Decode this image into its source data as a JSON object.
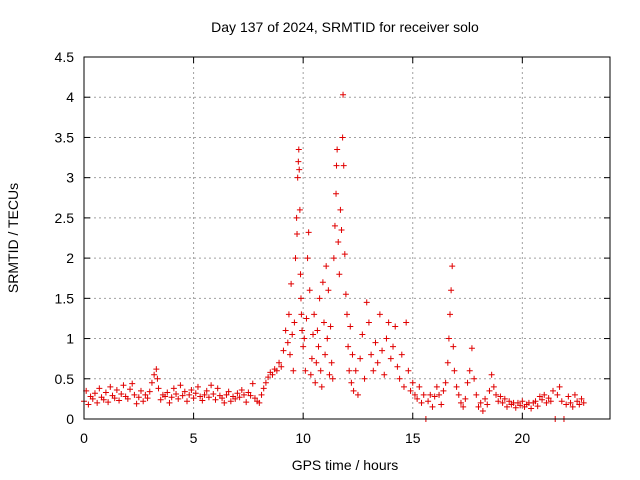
{
  "chart_data": {
    "type": "scatter",
    "title": "Day 137 of 2024, SRMTID for receiver solo",
    "xlabel": "GPS time / hours",
    "ylabel": "SRMTID / TECUs",
    "xlim": [
      0,
      24
    ],
    "ylim": [
      0,
      4.5
    ],
    "x_ticks": [
      0,
      5,
      10,
      15,
      20
    ],
    "x_tick_labels": [
      "0",
      "5",
      "10",
      "15",
      "20"
    ],
    "y_ticks": [
      0,
      0.5,
      1,
      1.5,
      2,
      2.5,
      3,
      3.5,
      4,
      4.5
    ],
    "y_tick_labels": [
      "0",
      "0.5",
      "1",
      "1.5",
      "2",
      "2.5",
      "3",
      "3.5",
      "4",
      "4.5"
    ],
    "grid": true,
    "marker": "plus",
    "color": "#e00000",
    "points": [
      [
        0.0,
        0.22
      ],
      [
        0.1,
        0.35
      ],
      [
        0.2,
        0.18
      ],
      [
        0.3,
        0.28
      ],
      [
        0.4,
        0.25
      ],
      [
        0.5,
        0.32
      ],
      [
        0.6,
        0.2
      ],
      [
        0.7,
        0.38
      ],
      [
        0.8,
        0.27
      ],
      [
        0.9,
        0.24
      ],
      [
        1.0,
        0.33
      ],
      [
        1.1,
        0.21
      ],
      [
        1.2,
        0.4
      ],
      [
        1.3,
        0.29
      ],
      [
        1.4,
        0.26
      ],
      [
        1.5,
        0.36
      ],
      [
        1.6,
        0.23
      ],
      [
        1.7,
        0.31
      ],
      [
        1.8,
        0.42
      ],
      [
        1.9,
        0.28
      ],
      [
        2.0,
        0.25
      ],
      [
        2.1,
        0.37
      ],
      [
        2.2,
        0.44
      ],
      [
        2.3,
        0.3
      ],
      [
        2.4,
        0.19
      ],
      [
        2.5,
        0.27
      ],
      [
        2.6,
        0.35
      ],
      [
        2.7,
        0.22
      ],
      [
        2.8,
        0.3
      ],
      [
        2.9,
        0.26
      ],
      [
        3.0,
        0.34
      ],
      [
        3.1,
        0.45
      ],
      [
        3.2,
        0.55
      ],
      [
        3.3,
        0.62
      ],
      [
        3.35,
        0.5
      ],
      [
        3.4,
        0.38
      ],
      [
        3.5,
        0.24
      ],
      [
        3.6,
        0.3
      ],
      [
        3.7,
        0.28
      ],
      [
        3.8,
        0.33
      ],
      [
        3.9,
        0.2
      ],
      [
        4.0,
        0.27
      ],
      [
        4.1,
        0.38
      ],
      [
        4.2,
        0.31
      ],
      [
        4.3,
        0.25
      ],
      [
        4.4,
        0.42
      ],
      [
        4.5,
        0.29
      ],
      [
        4.6,
        0.34
      ],
      [
        4.7,
        0.22
      ],
      [
        4.8,
        0.3
      ],
      [
        4.9,
        0.36
      ],
      [
        5.0,
        0.26
      ],
      [
        5.1,
        0.32
      ],
      [
        5.2,
        0.4
      ],
      [
        5.3,
        0.28
      ],
      [
        5.4,
        0.23
      ],
      [
        5.5,
        0.3
      ],
      [
        5.6,
        0.35
      ],
      [
        5.7,
        0.27
      ],
      [
        5.8,
        0.42
      ],
      [
        5.9,
        0.31
      ],
      [
        6.0,
        0.24
      ],
      [
        6.1,
        0.38
      ],
      [
        6.2,
        0.29
      ],
      [
        6.3,
        0.26
      ],
      [
        6.4,
        0.2
      ],
      [
        6.5,
        0.3
      ],
      [
        6.6,
        0.34
      ],
      [
        6.7,
        0.22
      ],
      [
        6.8,
        0.28
      ],
      [
        6.9,
        0.25
      ],
      [
        7.0,
        0.32
      ],
      [
        7.1,
        0.27
      ],
      [
        7.2,
        0.36
      ],
      [
        7.3,
        0.3
      ],
      [
        7.4,
        0.21
      ],
      [
        7.5,
        0.33
      ],
      [
        7.6,
        0.29
      ],
      [
        7.7,
        0.44
      ],
      [
        7.8,
        0.26
      ],
      [
        7.9,
        0.22
      ],
      [
        8.0,
        0.2
      ],
      [
        8.1,
        0.3
      ],
      [
        8.2,
        0.38
      ],
      [
        8.3,
        0.45
      ],
      [
        8.4,
        0.52
      ],
      [
        8.5,
        0.58
      ],
      [
        8.6,
        0.55
      ],
      [
        8.7,
        0.62
      ],
      [
        8.8,
        0.6
      ],
      [
        8.9,
        0.7
      ],
      [
        9.0,
        0.65
      ],
      [
        9.1,
        0.85
      ],
      [
        9.2,
        1.1
      ],
      [
        9.3,
        0.95
      ],
      [
        9.35,
        1.3
      ],
      [
        9.4,
        0.8
      ],
      [
        9.45,
        1.68
      ],
      [
        9.5,
        1.05
      ],
      [
        9.55,
        0.6
      ],
      [
        9.6,
        1.2
      ],
      [
        9.65,
        2.0
      ],
      [
        9.7,
        2.5
      ],
      [
        9.72,
        2.3
      ],
      [
        9.75,
        3.0
      ],
      [
        9.78,
        3.2
      ],
      [
        9.8,
        3.35
      ],
      [
        9.82,
        3.1
      ],
      [
        9.85,
        2.6
      ],
      [
        9.88,
        1.8
      ],
      [
        9.9,
        1.5
      ],
      [
        9.92,
        1.3
      ],
      [
        9.95,
        1.1
      ],
      [
        10.0,
        0.9
      ],
      [
        10.05,
        1.0
      ],
      [
        10.1,
        0.6
      ],
      [
        10.15,
        1.25
      ],
      [
        10.2,
        2.0
      ],
      [
        10.25,
        2.32
      ],
      [
        10.3,
        1.6
      ],
      [
        10.35,
        0.55
      ],
      [
        10.4,
        0.75
      ],
      [
        10.45,
        1.05
      ],
      [
        10.5,
        1.3
      ],
      [
        10.55,
        0.45
      ],
      [
        10.6,
        0.7
      ],
      [
        10.65,
        1.1
      ],
      [
        10.7,
        0.9
      ],
      [
        10.75,
        1.5
      ],
      [
        10.8,
        0.6
      ],
      [
        10.85,
        0.4
      ],
      [
        10.9,
        1.7
      ],
      [
        10.95,
        1.2
      ],
      [
        11.0,
        0.8
      ],
      [
        11.05,
        1.9
      ],
      [
        11.1,
        1.0
      ],
      [
        11.15,
        1.6
      ],
      [
        11.2,
        0.55
      ],
      [
        11.25,
        1.15
      ],
      [
        11.3,
        0.7
      ],
      [
        11.35,
        0.5
      ],
      [
        11.4,
        2.0
      ],
      [
        11.45,
        2.4
      ],
      [
        11.5,
        2.8
      ],
      [
        11.52,
        3.15
      ],
      [
        11.55,
        3.35
      ],
      [
        11.6,
        2.2
      ],
      [
        11.65,
        1.8
      ],
      [
        11.7,
        2.6
      ],
      [
        11.75,
        2.35
      ],
      [
        11.8,
        3.5
      ],
      [
        11.82,
        4.03
      ],
      [
        11.85,
        3.15
      ],
      [
        11.9,
        2.05
      ],
      [
        11.95,
        1.55
      ],
      [
        12.0,
        1.3
      ],
      [
        12.05,
        0.9
      ],
      [
        12.1,
        0.6
      ],
      [
        12.15,
        1.15
      ],
      [
        12.2,
        0.45
      ],
      [
        12.25,
        0.8
      ],
      [
        12.3,
        0.35
      ],
      [
        12.4,
        0.6
      ],
      [
        12.5,
        0.3
      ],
      [
        12.6,
        0.75
      ],
      [
        12.7,
        1.05
      ],
      [
        12.8,
        0.5
      ],
      [
        12.9,
        1.45
      ],
      [
        13.0,
        1.2
      ],
      [
        13.1,
        0.8
      ],
      [
        13.2,
        0.6
      ],
      [
        13.3,
        0.95
      ],
      [
        13.4,
        0.7
      ],
      [
        13.5,
        1.3
      ],
      [
        13.6,
        0.85
      ],
      [
        13.7,
        0.55
      ],
      [
        13.8,
        1.0
      ],
      [
        13.9,
        1.2
      ],
      [
        14.0,
        0.75
      ],
      [
        14.1,
        0.9
      ],
      [
        14.2,
        1.15
      ],
      [
        14.3,
        0.65
      ],
      [
        14.4,
        0.5
      ],
      [
        14.5,
        0.8
      ],
      [
        14.6,
        0.4
      ],
      [
        14.7,
        1.2
      ],
      [
        14.8,
        0.6
      ],
      [
        14.9,
        0.35
      ],
      [
        15.0,
        0.45
      ],
      [
        15.1,
        0.3
      ],
      [
        15.2,
        0.25
      ],
      [
        15.3,
        0.4
      ],
      [
        15.4,
        0.2
      ],
      [
        15.5,
        0.3
      ],
      [
        15.6,
        0.0
      ],
      [
        15.7,
        0.22
      ],
      [
        15.8,
        0.3
      ],
      [
        15.9,
        0.15
      ],
      [
        16.0,
        0.28
      ],
      [
        16.1,
        0.4
      ],
      [
        16.2,
        0.3
      ],
      [
        16.3,
        0.18
      ],
      [
        16.4,
        0.35
      ],
      [
        16.5,
        0.45
      ],
      [
        16.6,
        0.7
      ],
      [
        16.65,
        1.0
      ],
      [
        16.7,
        1.3
      ],
      [
        16.75,
        1.6
      ],
      [
        16.8,
        1.9
      ],
      [
        16.85,
        0.9
      ],
      [
        16.9,
        0.6
      ],
      [
        17.0,
        0.4
      ],
      [
        17.1,
        0.3
      ],
      [
        17.2,
        0.2
      ],
      [
        17.3,
        0.15
      ],
      [
        17.4,
        0.25
      ],
      [
        17.5,
        0.45
      ],
      [
        17.6,
        0.6
      ],
      [
        17.7,
        0.88
      ],
      [
        17.8,
        0.5
      ],
      [
        17.9,
        0.3
      ],
      [
        18.0,
        0.15
      ],
      [
        18.1,
        0.2
      ],
      [
        18.2,
        0.1
      ],
      [
        18.3,
        0.25
      ],
      [
        18.4,
        0.18
      ],
      [
        18.5,
        0.35
      ],
      [
        18.6,
        0.55
      ],
      [
        18.7,
        0.4
      ],
      [
        18.8,
        0.3
      ],
      [
        18.9,
        0.22
      ],
      [
        19.0,
        0.28
      ],
      [
        19.1,
        0.2
      ],
      [
        19.2,
        0.25
      ],
      [
        19.3,
        0.15
      ],
      [
        19.4,
        0.22
      ],
      [
        19.5,
        0.18
      ],
      [
        19.6,
        0.2
      ],
      [
        19.7,
        0.14
      ],
      [
        19.8,
        0.2
      ],
      [
        19.9,
        0.17
      ],
      [
        20.0,
        0.22
      ],
      [
        20.1,
        0.15
      ],
      [
        20.2,
        0.18
      ],
      [
        20.3,
        0.2
      ],
      [
        20.4,
        0.13
      ],
      [
        20.5,
        0.2
      ],
      [
        20.6,
        0.22
      ],
      [
        20.7,
        0.16
      ],
      [
        20.8,
        0.28
      ],
      [
        20.9,
        0.24
      ],
      [
        21.0,
        0.3
      ],
      [
        21.1,
        0.2
      ],
      [
        21.2,
        0.26
      ],
      [
        21.3,
        0.22
      ],
      [
        21.4,
        0.35
      ],
      [
        21.5,
        0.0
      ],
      [
        21.6,
        0.3
      ],
      [
        21.7,
        0.4
      ],
      [
        21.8,
        0.22
      ],
      [
        21.9,
        0.0
      ],
      [
        22.0,
        0.18
      ],
      [
        22.1,
        0.28
      ],
      [
        22.2,
        0.2
      ],
      [
        22.3,
        0.15
      ],
      [
        22.4,
        0.3
      ],
      [
        22.5,
        0.22
      ],
      [
        22.6,
        0.18
      ],
      [
        22.7,
        0.25
      ],
      [
        22.8,
        0.2
      ]
    ]
  }
}
